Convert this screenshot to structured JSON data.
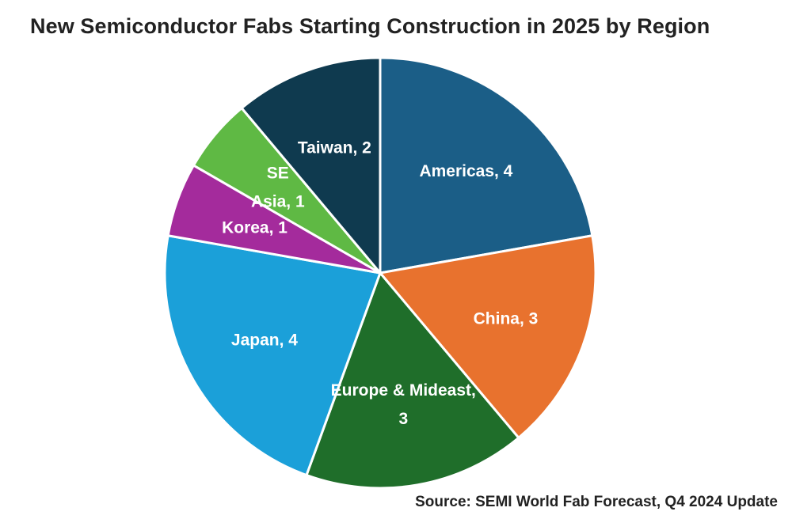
{
  "chart_data": {
    "type": "pie",
    "title": "New Semiconductor Fabs Starting Construction in 2025 by Region",
    "source": "Source: SEMI World Fab Forecast, Q4 2024 Update",
    "slices": [
      {
        "name": "Americas",
        "value": 4,
        "color": "#1b5e87",
        "label_lines": [
          "Americas, 4"
        ]
      },
      {
        "name": "China",
        "value": 3,
        "color": "#e8722e",
        "label_lines": [
          "China, 3"
        ]
      },
      {
        "name": "Europe & Mideast",
        "value": 3,
        "color": "#1f6e2a",
        "label_lines": [
          "Europe & Mideast,",
          "3"
        ]
      },
      {
        "name": "Japan",
        "value": 4,
        "color": "#1ba0d9",
        "label_lines": [
          "Japan, 4"
        ]
      },
      {
        "name": "Korea",
        "value": 1,
        "color": "#a42b9c",
        "label_lines": [
          "Korea, 1"
        ]
      },
      {
        "name": "SE Asia",
        "value": 1,
        "color": "#5fb944",
        "label_lines": [
          "SE",
          "Asia, 1"
        ]
      },
      {
        "name": "Taiwan",
        "value": 2,
        "color": "#0f3a4f",
        "label_lines": [
          "Taiwan, 2"
        ]
      }
    ],
    "start_angle_deg": 0,
    "direction": "clockwise",
    "legend": "none",
    "data_labels": "inside"
  }
}
